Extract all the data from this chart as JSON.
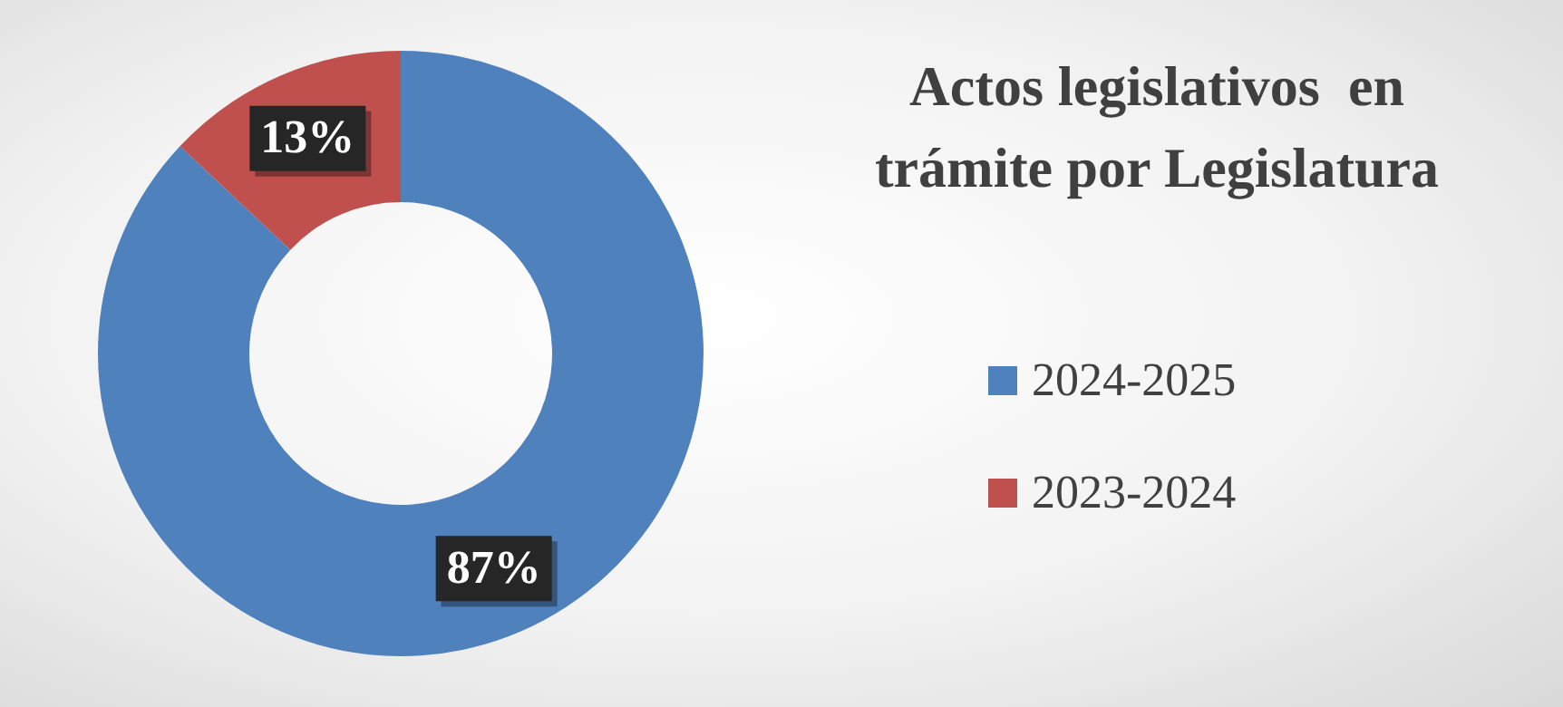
{
  "chart_data": {
    "type": "donut",
    "title": "Actos legislativos  en\ntrámite por Legislatura",
    "categories": [
      "2024-2025",
      "2023-2024"
    ],
    "values": [
      87,
      13
    ],
    "colors": [
      "#4f81bd",
      "#c0504d"
    ],
    "value_labels": [
      "87%",
      "13%"
    ],
    "legend": "right"
  }
}
